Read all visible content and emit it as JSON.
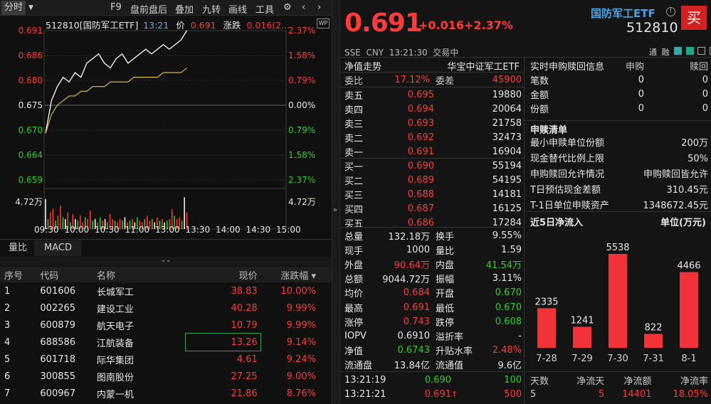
{
  "toolbar": {
    "tab_time": "分时",
    "f9": "F9",
    "panqian": "盘前盘后",
    "overlay": "叠加",
    "jiuzhuan": "九转",
    "huaxian": "画线",
    "tools": "工具"
  },
  "chart": {
    "code_name": "512810[国防军工ETF]",
    "time": "13:21",
    "price_label": "价",
    "price": "0.691",
    "change_label": "涨跌",
    "change": "0.016(2...",
    "prices": [
      "0.691",
      "0.686",
      "0.680",
      "0.675",
      "0.670",
      "0.664",
      "0.659"
    ],
    "pcts": [
      "2.37%",
      "1.58%",
      "0.79%",
      "0.00%",
      "0.79%",
      "1.58%",
      "2.37%"
    ],
    "vol_label": "4.72万",
    "times": [
      "09:30",
      "10:00",
      "10:30",
      "11:00",
      "13:00",
      "13:30",
      "14:00",
      "14:30",
      "15:00"
    ]
  },
  "chart_data": {
    "type": "line",
    "ylim": [
      0.659,
      0.691
    ],
    "prev_close": 0.675,
    "series": [
      {
        "name": "",
        "values": [
          0.669,
          0.676,
          0.679,
          0.681,
          0.68,
          0.682,
          0.681,
          0.684,
          0.685,
          0.686,
          0.684,
          0.683,
          0.685,
          0.686,
          0.684,
          0.685,
          0.686,
          0.687,
          0.686,
          0.687,
          0.688,
          0.687,
          0.688,
          0.689,
          0.691
        ]
      },
      {
        "name": "",
        "values": [
          0.669,
          0.673,
          0.675,
          0.676,
          0.677,
          0.677,
          0.678,
          0.678,
          0.679,
          0.679,
          0.679,
          0.68,
          0.68,
          0.68,
          0.68,
          0.681,
          0.681,
          0.681,
          0.681,
          0.681,
          0.682,
          0.682,
          0.682,
          0.682,
          0.683
        ]
      }
    ],
    "volume": [
      0.9,
      0.3,
      0.5,
      0.6,
      0.25,
      0.4,
      0.7,
      0.35,
      0.3,
      0.5,
      0.2,
      0.45,
      0.3,
      0.25,
      0.4,
      0.2,
      0.35,
      0.3,
      0.55,
      0.25,
      0.3,
      0.2,
      0.35,
      0.25,
      0.3,
      0.2,
      0.45,
      0.3,
      0.25,
      0.2,
      0.3,
      0.25,
      0.35,
      0.2,
      0.25,
      0.3,
      0.2,
      0.35,
      0.25,
      0.2,
      0.3,
      0.4,
      0.25,
      0.3,
      0.2,
      0.35,
      0.25,
      0.3,
      0.2,
      0.25,
      0.3,
      0.6,
      0.4,
      0.3,
      0.35,
      0.25,
      0.95,
      0.5
    ]
  },
  "subtabs": {
    "a": "量比",
    "b": "MACD"
  },
  "stocks": {
    "headers": [
      "序号",
      "代码",
      "名称",
      "现价",
      "涨跌幅 ▾"
    ],
    "rows": [
      [
        "1",
        "601606",
        "长城军工",
        "38.83",
        "10.00%"
      ],
      [
        "2",
        "002265",
        "建设工业",
        "40.28",
        "9.99%"
      ],
      [
        "3",
        "600879",
        "航天电子",
        "10.79",
        "9.99%"
      ],
      [
        "4",
        "688586",
        "江航装备",
        "13.26",
        "9.14%"
      ],
      [
        "5",
        "601718",
        "际华集团",
        "4.61",
        "9.24%"
      ],
      [
        "6",
        "300855",
        "图南股份",
        "27.25",
        "9.00%"
      ],
      [
        "7",
        "600967",
        "内蒙一机",
        "21.86",
        "8.76%"
      ]
    ]
  },
  "quote": {
    "price": "0.691",
    "chg": "+0.016",
    "pct": "+2.37%",
    "name": "国防军工ETF",
    "code": "512810",
    "buy": "买",
    "meta": "SSE  CNY  13:21:30  交易中",
    "icons": [
      "通",
      "融"
    ]
  },
  "orderbook": {
    "title": "净值走势",
    "fund": "华宝中证军工ETF",
    "weibi_label": "委比",
    "weibi": "17.12%",
    "weicha_label": "委差",
    "weicha": "45900",
    "asks": [
      [
        "卖五",
        "0.695",
        "19880"
      ],
      [
        "卖四",
        "0.694",
        "20064"
      ],
      [
        "卖三",
        "0.693",
        "21758"
      ],
      [
        "卖二",
        "0.692",
        "32473"
      ],
      [
        "卖一",
        "0.691",
        "16904"
      ]
    ],
    "bids": [
      [
        "买一",
        "0.690",
        "55194"
      ],
      [
        "买二",
        "0.689",
        "54195"
      ],
      [
        "买三",
        "0.688",
        "14181"
      ],
      [
        "买四",
        "0.687",
        "16125"
      ],
      [
        "买五",
        "0.686",
        "17284"
      ]
    ]
  },
  "stats": [
    [
      "总量",
      "132.18万",
      "w",
      "换手",
      "9.55%",
      "w"
    ],
    [
      "现手",
      "1000",
      "w",
      "量比",
      "1.59",
      "w"
    ],
    [
      "外盘",
      "90.64万",
      "r",
      "内盘",
      "41.54万",
      "g"
    ],
    [
      "总额",
      "9044.72万",
      "w",
      "振幅",
      "3.11%",
      "w"
    ],
    [
      "均价",
      "0.684",
      "r",
      "开盘",
      "0.670",
      "g"
    ],
    [
      "最高",
      "0.691",
      "r",
      "最低",
      "0.670",
      "g"
    ],
    [
      "涨停",
      "0.743",
      "r",
      "跌停",
      "0.608",
      "g"
    ],
    [
      "IOPV",
      "0.6910",
      "w",
      "溢折率",
      "-",
      "w"
    ],
    [
      "净值",
      "0.6743",
      "g",
      "升贴水率",
      "2.48%",
      "r"
    ],
    [
      "流通盘",
      "13.84亿",
      "w",
      "流通值",
      "9.6亿",
      "w"
    ]
  ],
  "ticks": [
    [
      "13:21:19",
      "0.690",
      "g",
      "100",
      "g",
      ""
    ],
    [
      "13:21:21",
      "0.691",
      "r",
      "500",
      "r",
      "↑"
    ]
  ],
  "redeem": {
    "title": "实时申购赎回信息",
    "h1": "申购",
    "h2": "赎回",
    "rows": [
      [
        "笔数",
        "0",
        "0"
      ],
      [
        "金额",
        "0",
        "0"
      ],
      [
        "份额",
        "0",
        "0"
      ]
    ]
  },
  "list": {
    "title": "申赎清单",
    "rows": [
      [
        "最小申赎单位份额",
        "200万"
      ],
      [
        "现金替代比例上限",
        "50%"
      ],
      [
        "申购赎回允许情况",
        "申购赎回皆允许"
      ],
      [
        "T日预估现金差额",
        "310.45元"
      ],
      [
        "T-1日单位申赎资产",
        "1348672.45元"
      ]
    ]
  },
  "flow": {
    "title": "近5日净流入",
    "unit": "单位(万元)",
    "days": [
      "7-28",
      "7-29",
      "7-30",
      "7-31",
      "8-1"
    ],
    "values": [
      2335,
      1241,
      5538,
      822,
      4466
    ],
    "sum_headers": [
      "天数",
      "净流天",
      "净流额",
      "净流率"
    ],
    "sum": [
      "5",
      "5",
      "14401",
      "18.05%"
    ]
  }
}
